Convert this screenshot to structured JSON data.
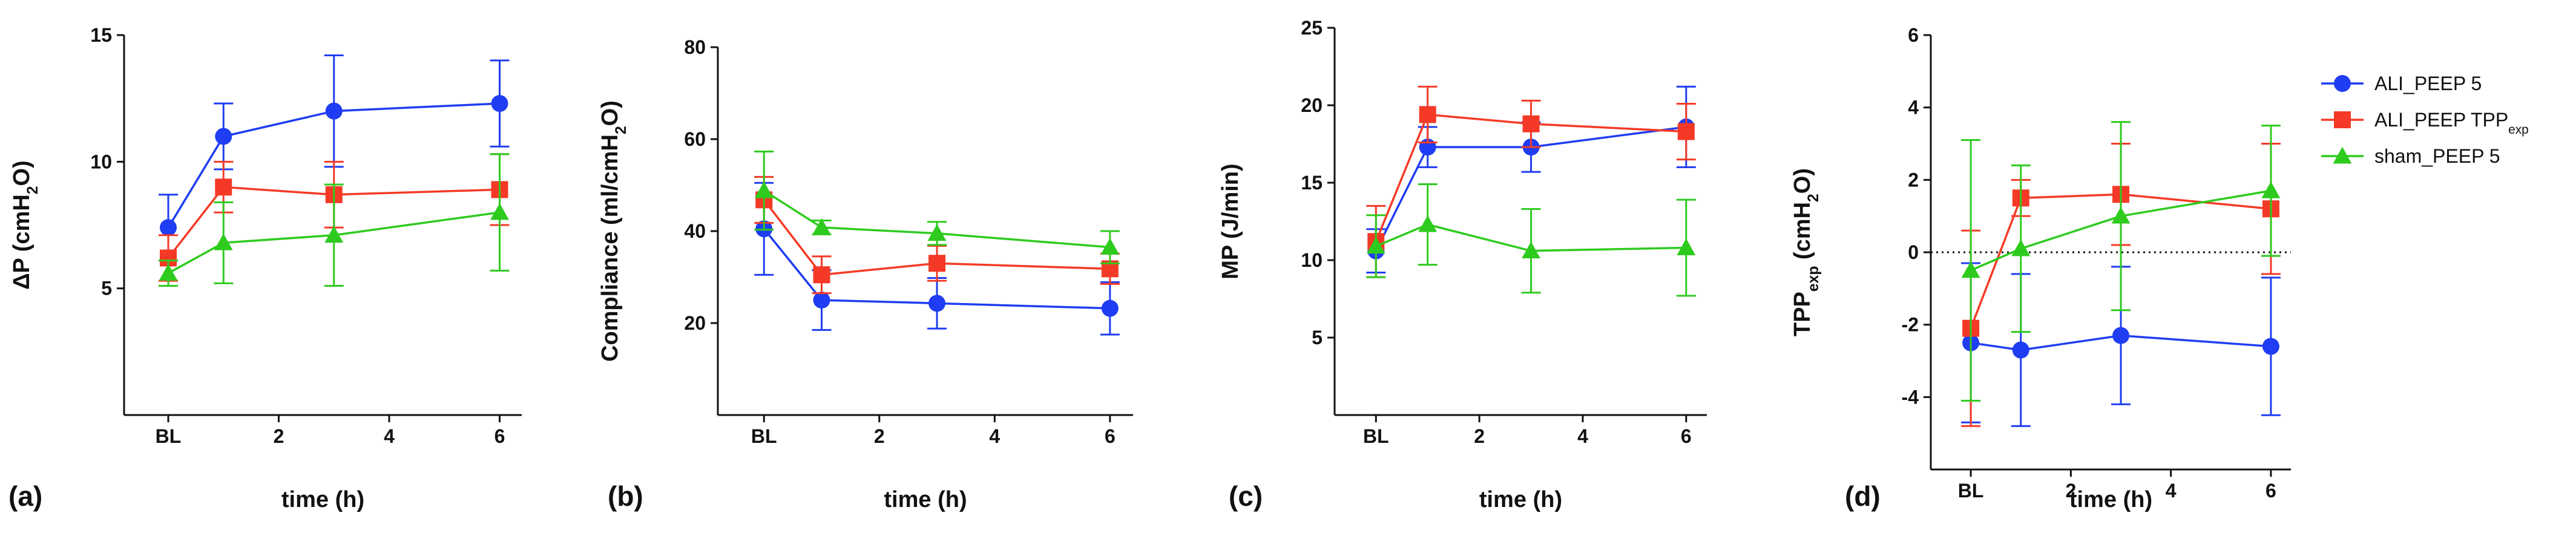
{
  "chart_data": {
    "type": "line",
    "series_styles": [
      {
        "name": "ALI_PEEP 5",
        "color": "#1f3df2",
        "marker": "circle"
      },
      {
        "name": "ALI_PEEP TPP_exp",
        "color": "#f43a26",
        "marker": "square"
      },
      {
        "name": "sham_PEEP 5",
        "color": "#2ecb1e",
        "marker": "triangle"
      }
    ],
    "legend": {
      "placement": "right",
      "entries": [
        {
          "main": "ALI_PEEP 5",
          "sub": ""
        },
        {
          "main": "ALI_PEEP TPP",
          "sub": "exp"
        },
        {
          "main": "sham_PEEP 5",
          "sub": ""
        }
      ]
    },
    "panels": [
      {
        "panel_label": "(a)",
        "xlabel": "time (h)",
        "ylabel": {
          "main": "ΔP (cmH",
          "sub": "2",
          "tail": "O)"
        },
        "ylim": [
          0,
          15
        ],
        "yticks": [
          5,
          10,
          15
        ],
        "xlim": [
          -0.8,
          6.4
        ],
        "xticks": [
          0,
          2,
          4,
          6
        ],
        "xtick_labels": [
          "BL",
          "2",
          "4",
          "6"
        ],
        "x": [
          0,
          1,
          3,
          6
        ],
        "reference_line": null,
        "series": [
          {
            "name": "ALI_PEEP 5",
            "values": [
              7.4,
              11.0,
              12.0,
              12.3
            ],
            "err": [
              1.3,
              1.3,
              2.2,
              1.7
            ]
          },
          {
            "name": "ALI_PEEP TPP_exp",
            "values": [
              6.2,
              9.0,
              8.7,
              8.9
            ],
            "err": [
              0.9,
              1.0,
              1.3,
              1.4
            ]
          },
          {
            "name": "sham_PEEP 5",
            "values": [
              5.6,
              6.8,
              7.1,
              8.0
            ],
            "err": [
              0.5,
              1.6,
              2.0,
              2.3
            ]
          }
        ]
      },
      {
        "panel_label": "(b)",
        "xlabel": "time (h)",
        "ylabel": {
          "main": "Compliance (ml/cmH",
          "sub": "2",
          "tail": "O)"
        },
        "ylim": [
          0,
          80
        ],
        "yticks": [
          20,
          40,
          60,
          80
        ],
        "xlim": [
          -0.8,
          6.4
        ],
        "xticks": [
          0,
          2,
          4,
          6
        ],
        "xtick_labels": [
          "BL",
          "2",
          "4",
          "6"
        ],
        "x": [
          0,
          1,
          3,
          6
        ],
        "reference_line": null,
        "series": [
          {
            "name": "ALI_PEEP 5",
            "values": [
              40.5,
              25.0,
              24.3,
              23.2
            ],
            "err": [
              10.0,
              6.5,
              5.5,
              5.7
            ]
          },
          {
            "name": "ALI_PEEP TPP_exp",
            "values": [
              46.8,
              30.5,
              33.0,
              31.8
            ],
            "err": [
              5.0,
              4.0,
              3.8,
              3.3
            ]
          },
          {
            "name": "sham_PEEP 5",
            "values": [
              48.8,
              40.8,
              39.5,
              36.5
            ],
            "err": [
              8.5,
              1.5,
              2.5,
              3.5
            ]
          }
        ]
      },
      {
        "panel_label": "(c)",
        "xlabel": "time (h)",
        "ylabel": {
          "main": "MP (J/min)",
          "sub": "",
          "tail": ""
        },
        "ylim": [
          0,
          25
        ],
        "yticks": [
          5,
          10,
          15,
          20,
          25
        ],
        "xlim": [
          -0.8,
          6.4
        ],
        "xticks": [
          0,
          2,
          4,
          6
        ],
        "xtick_labels": [
          "BL",
          "2",
          "4",
          "6"
        ],
        "x": [
          0,
          1,
          3,
          6
        ],
        "reference_line": null,
        "series": [
          {
            "name": "ALI_PEEP 5",
            "values": [
              10.6,
              17.3,
              17.3,
              18.6
            ],
            "err": [
              1.4,
              1.3,
              1.6,
              2.6
            ]
          },
          {
            "name": "ALI_PEEP TPP_exp",
            "values": [
              11.2,
              19.4,
              18.8,
              18.3
            ],
            "err": [
              2.3,
              1.8,
              1.5,
              1.8
            ]
          },
          {
            "name": "sham_PEEP 5",
            "values": [
              10.9,
              12.3,
              10.6,
              10.8
            ],
            "err": [
              2.0,
              2.6,
              2.7,
              3.1
            ]
          }
        ]
      },
      {
        "panel_label": "(d)",
        "xlabel": "time (h)",
        "ylabel": {
          "main": "TPP",
          "sub": "exp",
          "tail": " (cmH",
          "sub2": "2",
          "tail2": "O)"
        },
        "ylim": [
          -6,
          6
        ],
        "yticks": [
          -4,
          -2,
          0,
          2,
          4,
          6
        ],
        "xlim": [
          -0.8,
          6.4
        ],
        "xticks": [
          0,
          2,
          4,
          6
        ],
        "xtick_labels": [
          "BL",
          "2",
          "4",
          "6"
        ],
        "x": [
          0,
          1,
          3,
          6
        ],
        "reference_line": {
          "y": 0,
          "style": "dotted"
        },
        "series": [
          {
            "name": "ALI_PEEP 5",
            "values": [
              -2.5,
              -2.7,
              -2.3,
              -2.6
            ],
            "err": [
              2.2,
              2.1,
              1.9,
              1.9
            ]
          },
          {
            "name": "ALI_PEEP TPP_exp",
            "values": [
              -2.1,
              1.5,
              1.6,
              1.2
            ],
            "err": [
              2.7,
              0.5,
              1.4,
              1.8
            ]
          },
          {
            "name": "sham_PEEP 5",
            "values": [
              -0.5,
              0.1,
              1.0,
              1.7
            ],
            "err": [
              3.6,
              2.3,
              2.6,
              1.8
            ]
          }
        ]
      }
    ]
  }
}
